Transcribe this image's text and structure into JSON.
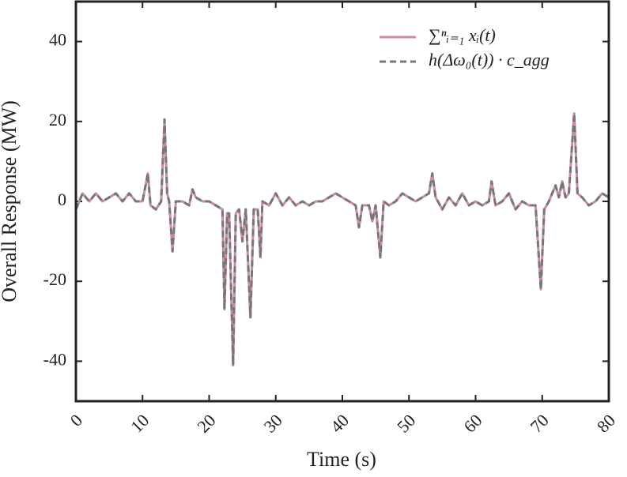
{
  "chart_data": {
    "type": "line",
    "x_label": "Time (s)",
    "y_label": "Overall Response (MW)",
    "x": [
      0,
      0.5,
      1,
      2,
      3,
      4,
      5,
      6,
      7,
      8,
      9,
      10,
      10.8,
      11.2,
      12,
      12.8,
      13.3,
      13.7,
      14,
      14.5,
      15,
      16,
      17,
      17.5,
      18,
      19,
      20,
      21,
      22,
      22.3,
      22.7,
      23,
      23.6,
      24,
      24.5,
      25,
      25.5,
      26.2,
      26.7,
      27.3,
      27.7,
      28,
      29,
      30,
      31,
      32,
      33,
      34,
      35,
      36,
      37,
      38,
      39,
      40,
      41,
      42,
      42.5,
      43,
      44,
      44.5,
      45,
      45.7,
      46.2,
      47,
      48,
      49,
      50,
      51,
      52,
      53,
      53.5,
      54,
      55,
      56,
      57,
      58,
      59,
      60,
      61,
      62,
      62.4,
      63,
      64,
      65,
      66,
      67,
      68,
      69,
      69.8,
      70.3,
      71,
      72,
      72.5,
      73,
      73.5,
      74,
      74.8,
      75.3,
      76,
      77,
      78,
      79,
      80
    ],
    "series": [
      {
        "name": "∑ⁿᵢ₌₁ xᵢ(t)",
        "color": "#cc8aa9",
        "dash": false,
        "values": [
          -2,
          0,
          2,
          0,
          2,
          0,
          1,
          2,
          0,
          2,
          0,
          0,
          7,
          -1,
          -2,
          0,
          20.5,
          2,
          0,
          -12.5,
          0,
          0,
          -1,
          3,
          1,
          0,
          0,
          -1,
          -2,
          -27,
          -3,
          -3,
          -41,
          -3,
          -2,
          -10,
          -2,
          -29,
          -2,
          -2,
          -14,
          0,
          -1,
          2,
          -1,
          1,
          -1,
          0,
          -1,
          0,
          0,
          1,
          2,
          1,
          0,
          -1,
          -6.5,
          -1,
          -1,
          -5,
          -1,
          -14,
          0,
          -1,
          0,
          2,
          1,
          0,
          1,
          2,
          7,
          1,
          -2,
          1,
          -1,
          2,
          -1,
          0,
          -1,
          0,
          5,
          -1,
          0,
          2,
          -2,
          0,
          -1,
          -1,
          -22,
          -2,
          0,
          4,
          1,
          5,
          1,
          2,
          22,
          2,
          1,
          -1,
          0,
          2,
          1
        ]
      },
      {
        "name": "h(Δω₀(t)) · c_agg",
        "color": "#777777",
        "dash": true,
        "values": [
          -2,
          0,
          2,
          0,
          2,
          0,
          1,
          2,
          0,
          2,
          0,
          0,
          7,
          -1,
          -2,
          0,
          20.5,
          2,
          0,
          -12.5,
          0,
          0,
          -1,
          3,
          1,
          0,
          0,
          -1,
          -2,
          -27,
          -3,
          -3,
          -41,
          -3,
          -2,
          -10,
          -2,
          -29,
          -2,
          -2,
          -14,
          0,
          -1,
          2,
          -1,
          1,
          -1,
          0,
          -1,
          0,
          0,
          1,
          2,
          1,
          0,
          -1,
          -6.5,
          -1,
          -1,
          -5,
          -1,
          -14,
          0,
          -1,
          0,
          2,
          1,
          0,
          1,
          2,
          7,
          1,
          -2,
          1,
          -1,
          2,
          -1,
          0,
          -1,
          0,
          5,
          -1,
          0,
          2,
          -2,
          0,
          -1,
          -1,
          -22,
          -2,
          0,
          4,
          1,
          5,
          1,
          2,
          22,
          2,
          1,
          -1,
          0,
          2,
          1
        ]
      }
    ],
    "xlim": [
      0,
      80
    ],
    "xticks": [
      0,
      10,
      20,
      30,
      40,
      50,
      60,
      70,
      80
    ],
    "ylim": [
      -50,
      50
    ],
    "yticks": [
      -40,
      -20,
      0,
      20,
      40
    ],
    "legend": "upper right",
    "grid": false
  }
}
